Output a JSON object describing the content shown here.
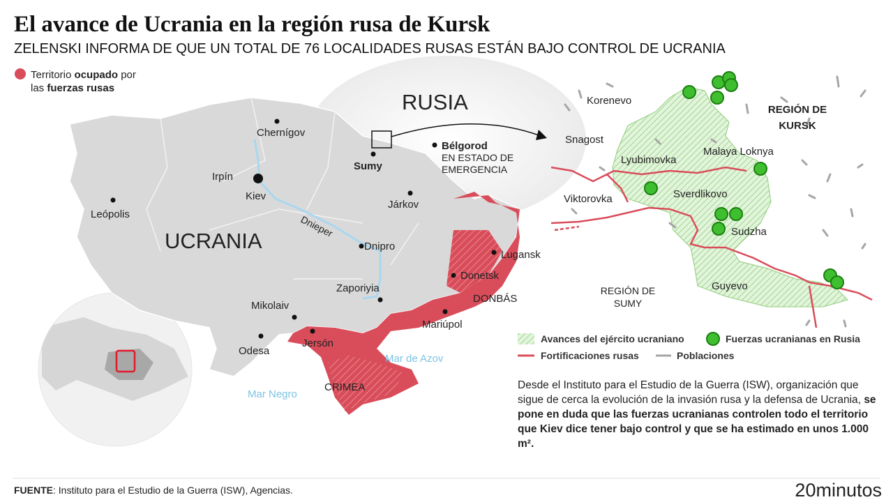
{
  "header": {
    "title": "El avance de Ucrania en la región rusa de Kursk",
    "subtitle": "ZELENSKI INFORMA DE QUE UN TOTAL DE 76 LOCALIDADES RUSAS ESTÁN BAJO CONTROL DE UCRANIA"
  },
  "legend_occupied": {
    "line1_a": "Territorio",
    "line1_b": "ocupado",
    "line1_c": "por",
    "line2_a": "las",
    "line2_b": "fuerzas rusas"
  },
  "map": {
    "russia": "RUSIA",
    "ukraine": "UCRANIA",
    "chernigov": "Chernígov",
    "irpin": "Irpín",
    "kiev": "Kiev",
    "leopolis": "Leópolis",
    "sumy": "Sumy",
    "belgorod": "Bélgorod",
    "belgorod_note_1": "EN ESTADO DE",
    "belgorod_note_2": "EMERGENCIA",
    "jarkov": "Járkov",
    "dnieper": "Dnieper",
    "dnipro": "Dnipro",
    "lugansk": "Lugansk",
    "donetsk": "Donetsk",
    "donbas": "DONBÁS",
    "zaporiyia": "Zaporiyia",
    "mikolaiv": "Mikolaiv",
    "mariupol": "Mariúpol",
    "jerson": "Jersón",
    "odesa": "Odesa",
    "azov": "Mar de Azov",
    "black_sea": "Mar Negro",
    "crimea": "CRIMEA"
  },
  "kursk": {
    "korenevo": "Korenevo",
    "snagost": "Snagost",
    "lyubimovka": "Lyubimovka",
    "malaya_loknya": "Malaya Loknya",
    "viktorovka": "Viktorovka",
    "sverdlikovo": "Sverdlikovo",
    "sudzha": "Sudzha",
    "guyevo": "Guyevo",
    "region_kursk_1": "REGIÓN DE",
    "region_kursk_2": "KURSK",
    "region_sumy_1": "REGIÓN DE",
    "region_sumy_2": "SUMY"
  },
  "legend": {
    "advances": "Avances del ejército ucraniano",
    "forces": "Fuerzas ucranianas en Rusia",
    "fortifications": "Fortificaciones rusas",
    "towns": "Poblaciones"
  },
  "note": {
    "normal": "Desde el Instituto para el Estudio de la Guerra (ISW), organización que sigue de cerca la evolución de la invasión rusa y la defensa de Ucrania,",
    "bold": "se pone en duda que las fuerzas ucranianas controlen todo el territorio que Kiev dice tener bajo control y que se ha estimado en unos 1.000 m²."
  },
  "footer": {
    "source_label": "FUENTE",
    "source": ": Instituto para el Estudio de la Guerra (ISW), Agencias.",
    "logo": "20minutos"
  }
}
